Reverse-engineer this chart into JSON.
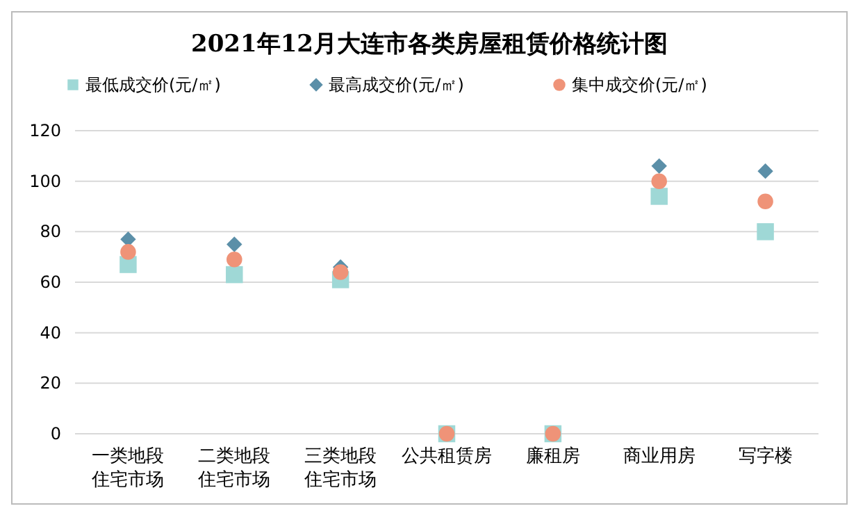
{
  "chart_data": {
    "type": "scatter",
    "title": "2021年12月大连市各类房屋租赁价格统计图",
    "categories": [
      "一类地段住宅市场",
      "二类地段住宅市场",
      "三类地段住宅市场",
      "公共租赁房",
      "廉租房",
      "商业用房",
      "写字楼"
    ],
    "series": [
      {
        "name": "最低成交价(元/㎡)",
        "color": "#9fd8d6",
        "marker": "square",
        "values": [
          67,
          63,
          61,
          0,
          0,
          94,
          80
        ]
      },
      {
        "name": "最高成交价(元/㎡)",
        "color": "#5b8fa8",
        "marker": "diamond",
        "values": [
          77,
          75,
          66,
          null,
          null,
          106,
          104
        ]
      },
      {
        "name": "集中成交价(元/㎡)",
        "color": "#ef9378",
        "marker": "circle",
        "values": [
          72,
          69,
          64,
          0,
          0,
          100,
          92
        ]
      }
    ],
    "ylim": [
      0,
      120
    ],
    "yticks": [
      0,
      20,
      40,
      60,
      80,
      100,
      120
    ],
    "grid": "y",
    "legend": "top"
  }
}
